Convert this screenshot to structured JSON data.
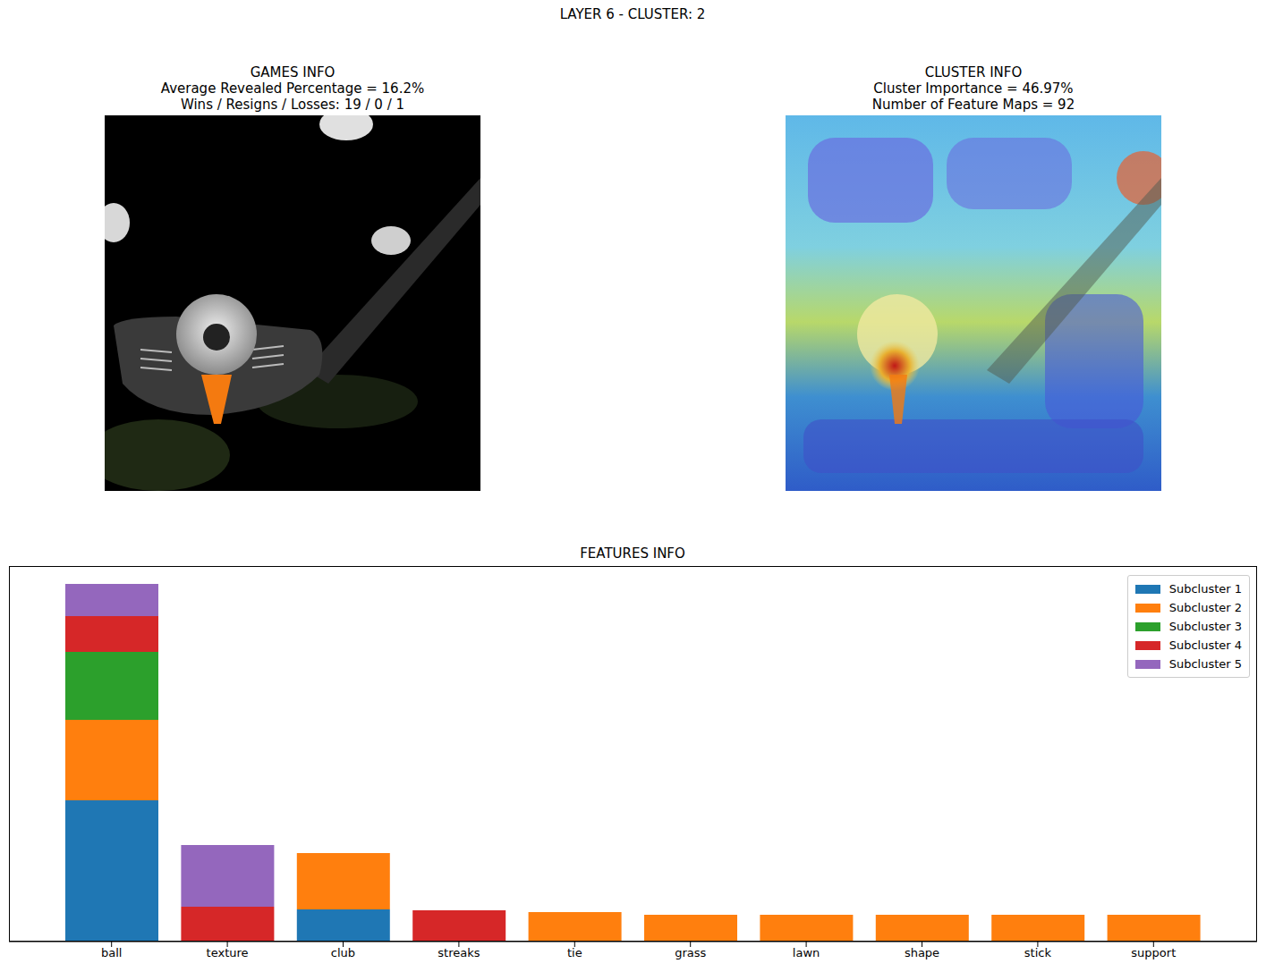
{
  "title": "LAYER 6 - CLUSTER: 2",
  "games_info": {
    "title": "GAMES INFO",
    "lines": [
      "Average Revealed Percentage = 16.2%",
      "Wins / Resigns / Losses: 19 / 0 / 1"
    ]
  },
  "cluster_info": {
    "title": "CLUSTER INFO",
    "lines": [
      "Cluster Importance = 46.97%",
      "Number of Feature Maps = 92"
    ]
  },
  "chart_data": {
    "type": "bar",
    "title": "FEATURES INFO",
    "categories": [
      "ball",
      "texture",
      "club",
      "streaks",
      "tie",
      "grass",
      "lawn",
      "shape",
      "stick",
      "support"
    ],
    "series": [
      {
        "name": "Subcluster 1",
        "color": "#1f77b4",
        "values": [
          39.5,
          0,
          9,
          0,
          0,
          0,
          0,
          0,
          0,
          0
        ]
      },
      {
        "name": "Subcluster 2",
        "color": "#ff7f0e",
        "values": [
          22.5,
          0,
          15.75,
          0,
          8.25,
          7.5,
          7.5,
          7.5,
          7.5,
          7.5
        ]
      },
      {
        "name": "Subcluster 3",
        "color": "#2ca02c",
        "values": [
          19,
          0,
          0,
          0,
          0,
          0,
          0,
          0,
          0,
          0
        ]
      },
      {
        "name": "Subcluster 4",
        "color": "#d62728",
        "values": [
          10,
          9.75,
          0,
          8.75,
          0,
          0,
          0,
          0,
          0,
          0
        ]
      },
      {
        "name": "Subcluster 5",
        "color": "#9467bd",
        "values": [
          9,
          17.25,
          0,
          0,
          0,
          0,
          0,
          0,
          0,
          0
        ]
      }
    ],
    "stacked": true,
    "ylim": [
      0,
      105
    ],
    "yticks": [],
    "tick_labels": "x",
    "legend": "upper right",
    "grid": false
  }
}
